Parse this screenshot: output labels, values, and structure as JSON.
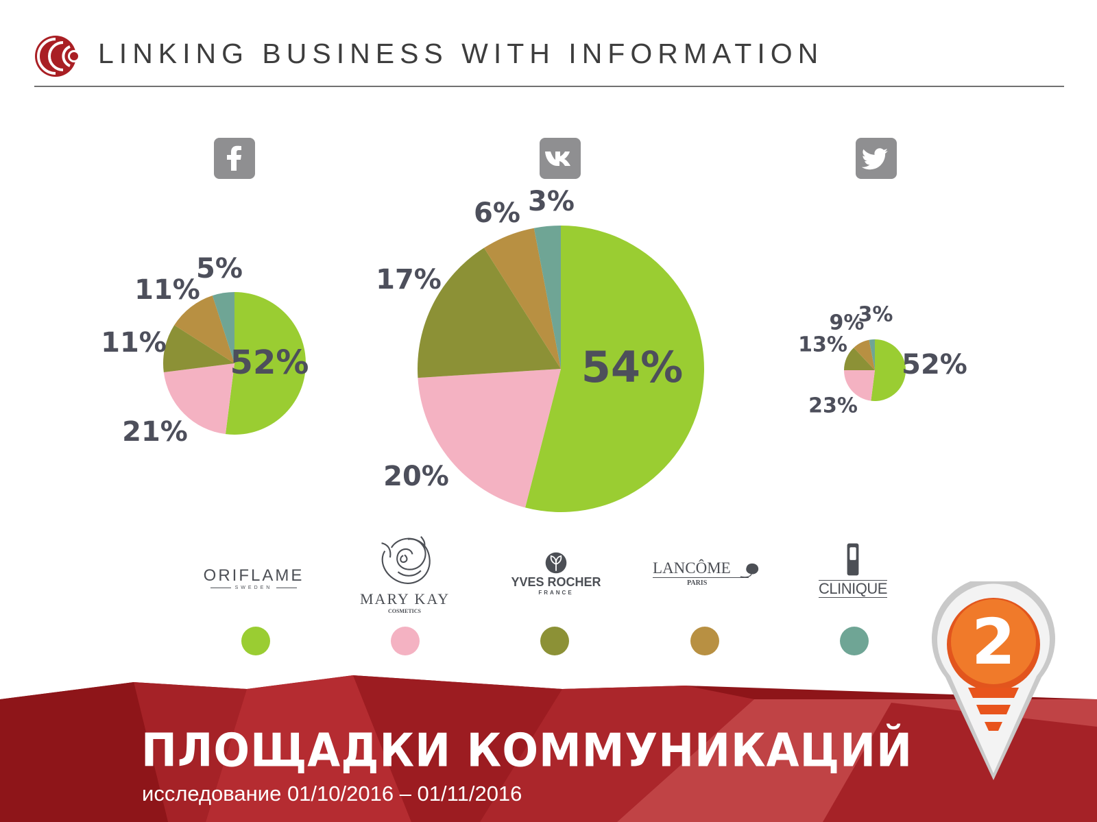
{
  "header": {
    "title": "LINKING BUSINESS WITH INFORMATION"
  },
  "networks": [
    {
      "name": "facebook",
      "icon": "facebook-icon"
    },
    {
      "name": "vkontakte",
      "icon": "vk-icon"
    },
    {
      "name": "twitter",
      "icon": "twitter-icon"
    }
  ],
  "chart_data": [
    {
      "type": "pie",
      "network": "facebook",
      "labels": [
        "Oriflame",
        "Mary Kay",
        "Yves Rocher",
        "Lancôme",
        "Clinique"
      ],
      "values": [
        52,
        21,
        11,
        11,
        5
      ],
      "value_labels": [
        "52%",
        "21%",
        "11%",
        "11%",
        "5%"
      ],
      "colors": [
        "#9acd32",
        "#f4b2c2",
        "#8c9136",
        "#b89042",
        "#6fa595"
      ]
    },
    {
      "type": "pie",
      "network": "vkontakte",
      "labels": [
        "Oriflame",
        "Mary Kay",
        "Yves Rocher",
        "Lancôme",
        "Clinique"
      ],
      "values": [
        54,
        20,
        17,
        6,
        3
      ],
      "value_labels": [
        "54%",
        "20%",
        "17%",
        "6%",
        "3%"
      ],
      "colors": [
        "#9acd32",
        "#f4b2c2",
        "#8c9136",
        "#b89042",
        "#6fa595"
      ]
    },
    {
      "type": "pie",
      "network": "twitter",
      "labels": [
        "Oriflame",
        "Mary Kay",
        "Yves Rocher",
        "Lancôme",
        "Clinique"
      ],
      "values": [
        52,
        23,
        13,
        9,
        3
      ],
      "value_labels": [
        "52%",
        "23%",
        "13%",
        "9%",
        "3%"
      ],
      "colors": [
        "#9acd32",
        "#f4b2c2",
        "#8c9136",
        "#b89042",
        "#6fa595"
      ]
    }
  ],
  "legend": [
    {
      "brand": "ORIFLAME",
      "sub": "SWEDEN",
      "color": "#9acd32"
    },
    {
      "brand": "MARY KAY",
      "sub": "COSMETICS",
      "color": "#f4b2c2"
    },
    {
      "brand": "YVES ROCHER",
      "sub": "FRANCE",
      "color": "#8c9136"
    },
    {
      "brand": "LANCÔME",
      "sub": "PARIS",
      "color": "#b89042"
    },
    {
      "brand": "CLINIQUE",
      "sub": "",
      "color": "#6fa595"
    }
  ],
  "banner": {
    "title": "ПЛОЩАДКИ КОММУНИКАЦИЙ",
    "subtitle": "исследование 01/10/2016 – 01/11/2016",
    "badge_number": "2",
    "colors": [
      "#8e1519",
      "#a52227",
      "#c94b4e"
    ]
  }
}
